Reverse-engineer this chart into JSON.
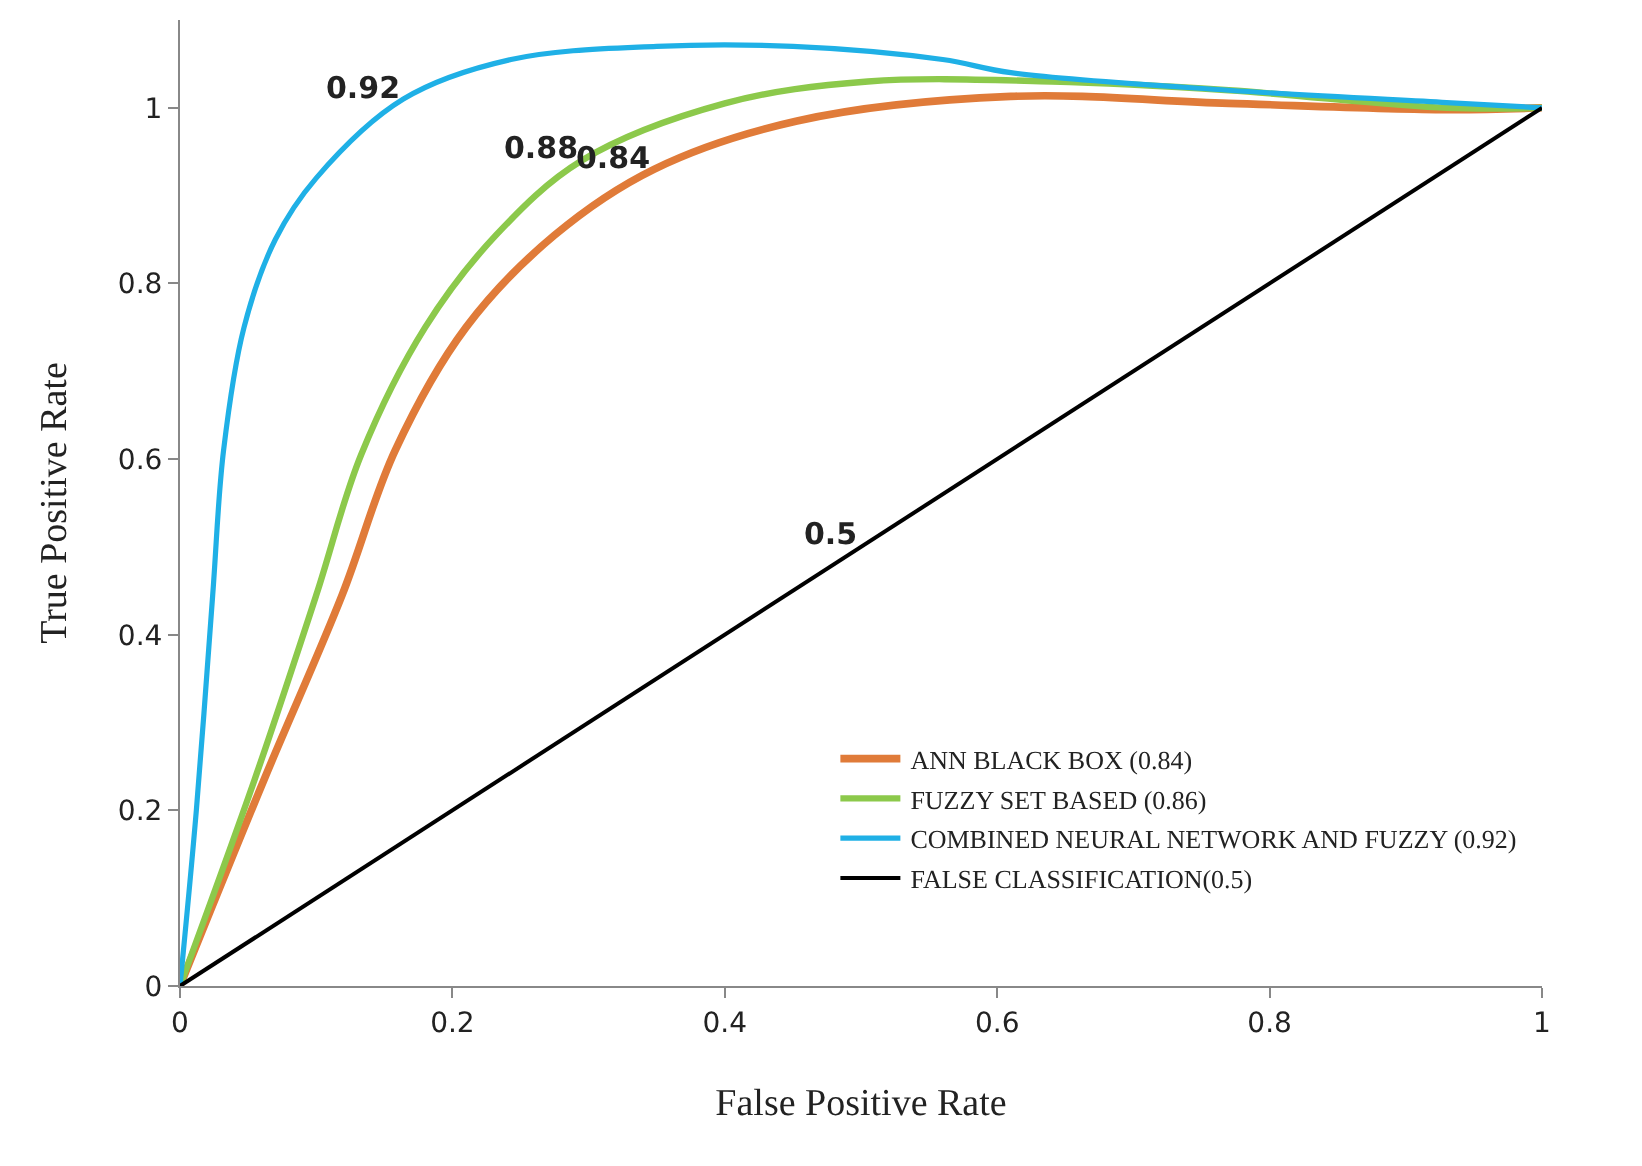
{
  "chart_data": {
    "type": "line",
    "xlabel": "False Positive Rate",
    "ylabel": "True Positive Rate",
    "xlim": [
      0,
      1
    ],
    "ylim": [
      0,
      1.1
    ],
    "xticks": [
      0,
      0.2,
      0.4,
      0.6,
      0.8,
      1
    ],
    "yticks": [
      0,
      0.2,
      0.4,
      0.6,
      0.8,
      1
    ],
    "legend": "bottom right",
    "marker": "none",
    "line_style": "solid",
    "series": [
      {
        "name": "ANN BLACK BOX (0.84)",
        "color": "#e07b39",
        "x": [
          0,
          0.062,
          0.119,
          0.158,
          0.21,
          0.275,
          0.348,
          0.453,
          0.61,
          0.77,
          0.93,
          1
        ],
        "values": [
          0,
          0.236,
          0.445,
          0.61,
          0.75,
          0.855,
          0.93,
          0.985,
          1.013,
          1.005,
          0.998,
          1
        ]
      },
      {
        "name": "FUZZY SET BASED (0.86)",
        "color": "#8cc94b",
        "x": [
          0,
          0.055,
          0.1,
          0.133,
          0.18,
          0.232,
          0.295,
          0.4,
          0.505,
          0.64,
          0.77,
          0.93,
          1
        ],
        "values": [
          0,
          0.236,
          0.445,
          0.605,
          0.75,
          0.855,
          0.94,
          1.005,
          1.03,
          1.03,
          1.02,
          1.0,
          1
        ]
      },
      {
        "name": "COMBINED NEURAL NETWORK AND FUZZY (0.92)",
        "color": "#1fb0e6",
        "x": [
          0,
          0.012,
          0.024,
          0.032,
          0.047,
          0.07,
          0.1,
          0.164,
          0.243,
          0.35,
          0.45,
          0.56,
          0.61,
          0.77,
          0.93,
          1
        ],
        "values": [
          0,
          0.2,
          0.445,
          0.61,
          0.75,
          0.85,
          0.92,
          1.01,
          1.055,
          1.07,
          1.07,
          1.055,
          1.04,
          1.02,
          1.006,
          1
        ]
      },
      {
        "name": "FALSE CLASSIFICATION(0.5)",
        "color": "#000000",
        "x": [
          0,
          1
        ],
        "values": [
          0,
          1
        ]
      }
    ],
    "annotations": [
      {
        "text": "0.92",
        "x": 0.164,
        "y": 1.01
      },
      {
        "text": "0.88",
        "x": 0.295,
        "y": 0.94
      },
      {
        "text": "0.84",
        "x": 0.348,
        "y": 0.93
      },
      {
        "text": "0.5",
        "x": 0.5,
        "y": 0.5
      }
    ]
  }
}
